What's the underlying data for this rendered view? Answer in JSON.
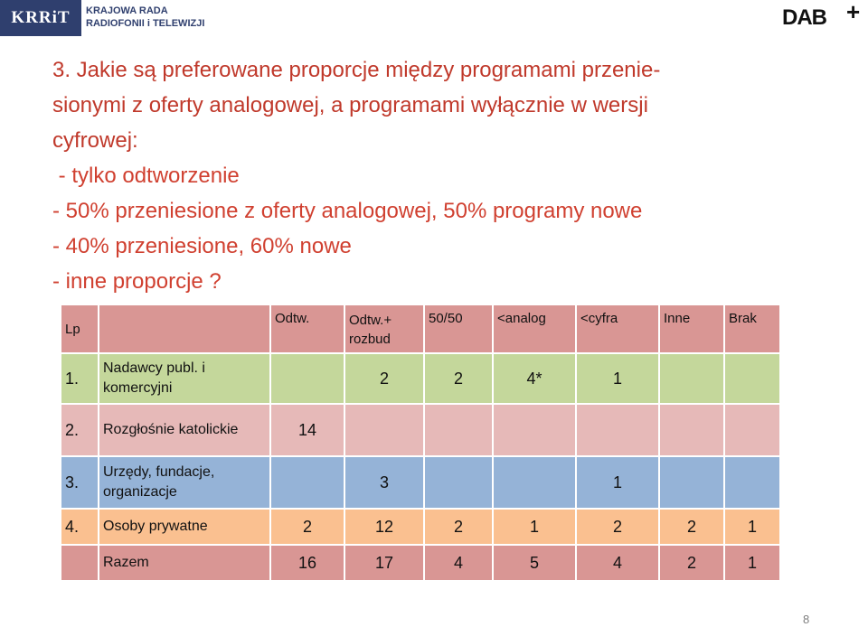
{
  "logos": {
    "krrit_mark": "KRRiT",
    "krrit_name_line1": "KRAJOWA RADA",
    "krrit_name_line2": "RADIOFONII i TELEWIZJI",
    "dab_mark": "DAB",
    "dab_plus": "+"
  },
  "question": {
    "title_line1": "3. Jakie są preferowane proporcje między programami przenie-",
    "title_line2": "sionymi z oferty analogowej, a programami wyłącznie w  wersji",
    "title_line3": "cyfrowej:",
    "options": [
      " - tylko odtworzenie",
      "- 50% przeniesione z oferty analogowej, 50% programy nowe",
      "- 40% przeniesione, 60% nowe",
      "- inne proporcje ?"
    ]
  },
  "table": {
    "header": {
      "lp": "Lp",
      "name": "",
      "c1": "Odtw.",
      "c2": "Odtw.+ rozbud",
      "c3": "50/50",
      "c4": "<analog",
      "c5": "<cyfra",
      "c6": "Inne",
      "c7": "Brak"
    },
    "rows": [
      {
        "lp": "1.",
        "name": "Nadawcy publ. i komercyjni",
        "c1": "",
        "c2": "2",
        "c3": "2",
        "c4": "4*",
        "c5": "1",
        "c6": "",
        "c7": ""
      },
      {
        "lp": "2.",
        "name": "Rozgłośnie katolickie",
        "c1": "14",
        "c2": "",
        "c3": "",
        "c4": "",
        "c5": "",
        "c6": "",
        "c7": ""
      },
      {
        "lp": "3.",
        "name": "Urzędy, fundacje, organizacje",
        "c1": "",
        "c2": "3",
        "c3": "",
        "c4": "",
        "c5": "1",
        "c6": "",
        "c7": ""
      },
      {
        "lp": "4.",
        "name": "Osoby prywatne",
        "c1": "2",
        "c2": "12",
        "c3": "2",
        "c4": "1",
        "c5": "2",
        "c6": "2",
        "c7": "1"
      },
      {
        "lp": "",
        "name": "Razem",
        "c1": "16",
        "c2": "17",
        "c3": "4",
        "c4": "5",
        "c5": "4",
        "c6": "2",
        "c7": "1"
      }
    ]
  },
  "page_number": "8",
  "colors": {
    "title": "#c0392b",
    "header_row": "#d99694",
    "row1": "#c4d79b",
    "row2": "#e6b9b8",
    "row3": "#95b3d7",
    "row4": "#fac090",
    "total_row": "#d99694"
  }
}
